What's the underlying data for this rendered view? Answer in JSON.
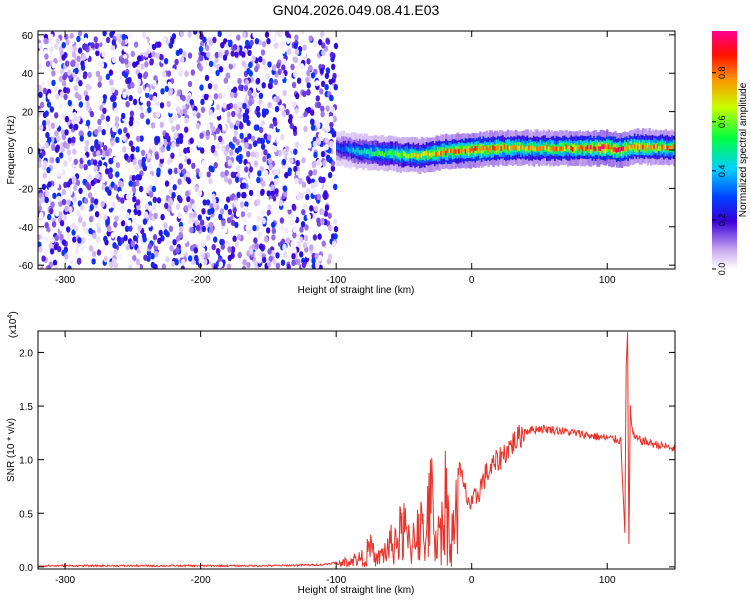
{
  "title": "GN04.2026.049.08.41.E03",
  "colorbar": {
    "label": "Normalized spectral amplitude",
    "ticks": [
      "0.0",
      "0.2",
      "0.4",
      "0.6",
      "0.8"
    ],
    "tick_values": [
      0.0,
      0.2,
      0.4,
      0.6,
      0.8
    ],
    "range": [
      0,
      0.97
    ]
  },
  "chart_data": [
    {
      "type": "heatmap",
      "title": "GN04.2026.049.08.41.E03",
      "xlabel": "Height of straight line (km)",
      "ylabel": "Frequency (Hz)",
      "xlim": [
        -320,
        150
      ],
      "ylim": [
        -62,
        62
      ],
      "xticks": [
        -300,
        -200,
        -100,
        0,
        100
      ],
      "xtick_labels": [
        "-300",
        "-200",
        "-100",
        "0",
        "100"
      ],
      "yticks": [
        60,
        40,
        20,
        0,
        -20,
        -40,
        -60
      ],
      "ytick_labels": [
        "60",
        "40",
        "20",
        "0",
        "-20",
        "-40",
        "-60"
      ],
      "description_series": [
        {
          "name": "noise region (scattered weak amplitude)",
          "x_range": [
            -320,
            -100
          ],
          "amplitude_range": [
            0.0,
            0.3
          ]
        },
        {
          "name": "signal band center frequency",
          "x": [
            -100,
            -80,
            -60,
            -40,
            -20,
            0,
            20,
            40,
            60,
            80,
            100,
            110,
            120,
            150
          ],
          "y": [
            1,
            -1,
            -2,
            -3,
            -1,
            0,
            1,
            1,
            1,
            1,
            1,
            0,
            2,
            1
          ],
          "peak_amplitude": [
            0.3,
            0.5,
            0.6,
            0.7,
            0.8,
            0.85,
            0.8,
            0.75,
            0.75,
            0.8,
            0.95,
            0.9,
            0.8,
            0.75
          ]
        }
      ]
    },
    {
      "type": "line",
      "xlabel": "Height of straight line (km)",
      "ylabel": "SNR (10 * v/v)",
      "y_multiplier": "(x10",
      "y_multiplier_exp": "4",
      "xlim": [
        -320,
        150
      ],
      "ylim": [
        -0.02,
        2.2
      ],
      "xticks": [
        -300,
        -200,
        -100,
        0,
        100
      ],
      "xtick_labels": [
        "-300",
        "-200",
        "-100",
        "0",
        "100"
      ],
      "yticks": [
        0.0,
        0.5,
        1.0,
        1.5,
        2.0
      ],
      "ytick_labels": [
        "0.0",
        "0.5",
        "1.0",
        "1.5",
        "2.0"
      ],
      "series": [
        {
          "name": "SNR",
          "color": "#e8332a",
          "x": [
            -320,
            -300,
            -250,
            -200,
            -150,
            -110,
            -100,
            -90,
            -80,
            -75,
            -70,
            -60,
            -50,
            -45,
            -40,
            -35,
            -30,
            -25,
            -20,
            -15,
            -10,
            -5,
            0,
            10,
            20,
            30,
            40,
            50,
            60,
            70,
            80,
            90,
            100,
            105,
            110,
            113,
            114,
            115,
            116,
            117,
            118,
            120,
            125,
            130,
            140,
            150
          ],
          "y": [
            0.01,
            0.01,
            0.01,
            0.01,
            0.01,
            0.02,
            0.04,
            0.1,
            0.15,
            0.3,
            0.12,
            0.35,
            0.6,
            0.3,
            0.8,
            0.45,
            1.05,
            0.4,
            1.15,
            0.5,
            0.95,
            0.7,
            0.55,
            0.85,
            1.0,
            1.15,
            1.27,
            1.29,
            1.28,
            1.26,
            1.24,
            1.22,
            1.2,
            1.19,
            1.18,
            0.35,
            1.85,
            2.18,
            0.2,
            1.5,
            1.3,
            1.2,
            1.18,
            1.16,
            1.13,
            1.1
          ]
        }
      ]
    }
  ]
}
